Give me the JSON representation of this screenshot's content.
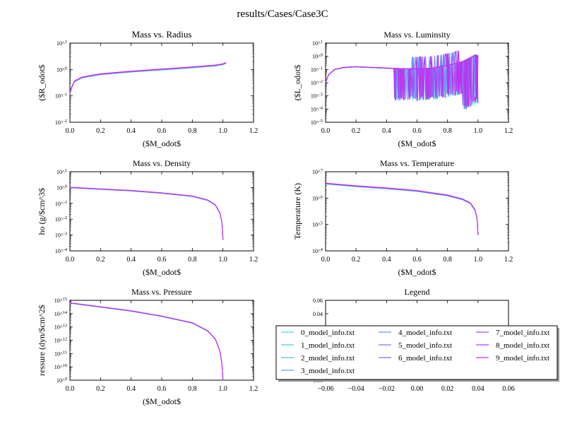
{
  "figure": {
    "suptitle": "results/Cases/Case3C"
  },
  "legend_entries": [
    "0_model_info.txt",
    "1_model_info.txt",
    "2_model_info.txt",
    "3_model_info.txt",
    "4_model_info.txt",
    "5_model_info.txt",
    "6_model_info.txt",
    "7_model_info.txt",
    "8_model_info.txt",
    "9_model_info.txt"
  ],
  "colors": [
    "#41e1e8",
    "#3ecfe3",
    "#4bb9ec",
    "#59a8f0",
    "#6f8ff2",
    "#8079f4",
    "#9065f4",
    "#a052f2",
    "#b43ff0",
    "#c92bef"
  ],
  "chart_data": [
    {
      "id": "radius",
      "type": "line",
      "title": "Mass vs. Radius",
      "xlabel": "($M_odot$",
      "ylabel": "($R_odot$",
      "xlim": [
        0,
        1.2
      ],
      "ylog": true,
      "ylim_exp": [
        -2,
        1
      ],
      "x_ticks": [
        "0.0",
        "0.2",
        "0.4",
        "0.6",
        "0.8",
        "1.0",
        "1.2"
      ],
      "y_ticks": [
        "10^-2",
        "10^-1",
        "10^0",
        "10^1"
      ],
      "series_shape": [
        [
          0.001,
          -0.9
        ],
        [
          0.01,
          -0.7
        ],
        [
          0.03,
          -0.45
        ],
        [
          0.08,
          -0.3
        ],
        [
          0.2,
          -0.18
        ],
        [
          0.4,
          -0.08
        ],
        [
          0.6,
          0.0
        ],
        [
          0.8,
          0.08
        ],
        [
          0.95,
          0.15
        ],
        [
          1.0,
          0.2
        ],
        [
          1.02,
          0.25
        ]
      ]
    },
    {
      "id": "luminosity",
      "type": "line",
      "title": "Mass vs. Luminsity",
      "xlabel": "($M_odot$",
      "ylabel": "($L_odot$",
      "xlim": [
        0,
        1.2
      ],
      "ylog": true,
      "ylim_exp": [
        -5,
        1
      ],
      "x_ticks": [
        "0.0",
        "0.2",
        "0.4",
        "0.6",
        "0.8",
        "1.0",
        "1.2"
      ],
      "y_ticks": [
        "10^-5",
        "10^-4",
        "10^-3",
        "10^-2",
        "10^-1",
        "10^0",
        "10^1"
      ],
      "series_shape": [
        [
          0.0,
          -2.0
        ],
        [
          0.02,
          -1.4
        ],
        [
          0.06,
          -1.0
        ],
        [
          0.12,
          -0.85
        ],
        [
          0.2,
          -0.8
        ],
        [
          0.3,
          -0.85
        ],
        [
          0.4,
          -0.9
        ],
        [
          0.5,
          -0.95
        ],
        [
          0.6,
          -0.95
        ],
        [
          0.7,
          -0.9
        ],
        [
          0.8,
          -0.7
        ],
        [
          0.9,
          -0.4
        ],
        [
          0.96,
          -0.05
        ],
        [
          0.98,
          0.1
        ],
        [
          1.0,
          0.05
        ]
      ]
    },
    {
      "id": "density",
      "type": "line",
      "title": "Mass vs. Density",
      "xlabel": "($M_odot$",
      "ylabel": "ho (g/$cm^3$",
      "xlim": [
        0,
        1.2
      ],
      "ylog": true,
      "ylim_exp": [
        -4,
        1
      ],
      "x_ticks": [
        "0.0",
        "0.2",
        "0.4",
        "0.6",
        "0.8",
        "1.0",
        "1.2"
      ],
      "y_ticks": [
        "10^-4",
        "10^-3",
        "10^-2",
        "10^-1",
        "10^0",
        "10^1"
      ],
      "series_shape": [
        [
          0.0,
          0.0
        ],
        [
          0.2,
          -0.1
        ],
        [
          0.4,
          -0.2
        ],
        [
          0.6,
          -0.35
        ],
        [
          0.8,
          -0.55
        ],
        [
          0.9,
          -0.8
        ],
        [
          0.95,
          -1.1
        ],
        [
          0.98,
          -1.6
        ],
        [
          0.995,
          -2.3
        ],
        [
          1.0,
          -3.3
        ]
      ]
    },
    {
      "id": "temperature",
      "type": "line",
      "title": "Mass vs. Temperature",
      "xlabel": "($M_odot$",
      "ylabel": "Temperature (K)",
      "xlim": [
        0,
        1.2
      ],
      "ylog": true,
      "ylim_exp": [
        4,
        7
      ],
      "x_ticks": [
        "0.0",
        "0.2",
        "0.4",
        "0.6",
        "0.8",
        "1.0",
        "1.2"
      ],
      "y_ticks": [
        "10^4",
        "10^5",
        "10^6",
        "10^7"
      ],
      "series_shape": [
        [
          0.0,
          6.55
        ],
        [
          0.2,
          6.45
        ],
        [
          0.4,
          6.37
        ],
        [
          0.6,
          6.27
        ],
        [
          0.8,
          6.1
        ],
        [
          0.9,
          5.95
        ],
        [
          0.95,
          5.8
        ],
        [
          0.98,
          5.55
        ],
        [
          0.995,
          5.2
        ],
        [
          1.0,
          4.6
        ]
      ]
    },
    {
      "id": "pressure",
      "type": "line",
      "title": "Mass vs. Pressure",
      "xlabel": "($M_odot$",
      "ylabel": "ressure (dyn/$cm^2$",
      "xlim": [
        0,
        1.2
      ],
      "ylog": true,
      "ylim_exp": [
        9,
        15
      ],
      "x_ticks": [
        "0.0",
        "0.2",
        "0.4",
        "0.6",
        "0.8",
        "1.0",
        "1.2"
      ],
      "y_ticks": [
        "10^9",
        "10^10",
        "10^11",
        "10^12",
        "10^13",
        "10^14",
        "10^15"
      ],
      "series_shape": [
        [
          0.0,
          14.8
        ],
        [
          0.2,
          14.5
        ],
        [
          0.4,
          14.2
        ],
        [
          0.6,
          13.8
        ],
        [
          0.8,
          13.3
        ],
        [
          0.9,
          12.7
        ],
        [
          0.95,
          12.1
        ],
        [
          0.98,
          11.2
        ],
        [
          0.995,
          10.1
        ],
        [
          1.0,
          9.0
        ]
      ]
    },
    {
      "id": "legend",
      "type": "line",
      "title": "Legend",
      "xlim": [
        -0.06,
        0.06
      ],
      "ylim": [
        -0.06,
        0.06
      ],
      "x_ticks": [
        "−0.06",
        "−0.04",
        "−0.02",
        "0.00",
        "0.02",
        "0.04",
        "0.06"
      ],
      "y_ticks": [
        "−0.06",
        "0.04",
        "0.06"
      ],
      "series": []
    }
  ]
}
